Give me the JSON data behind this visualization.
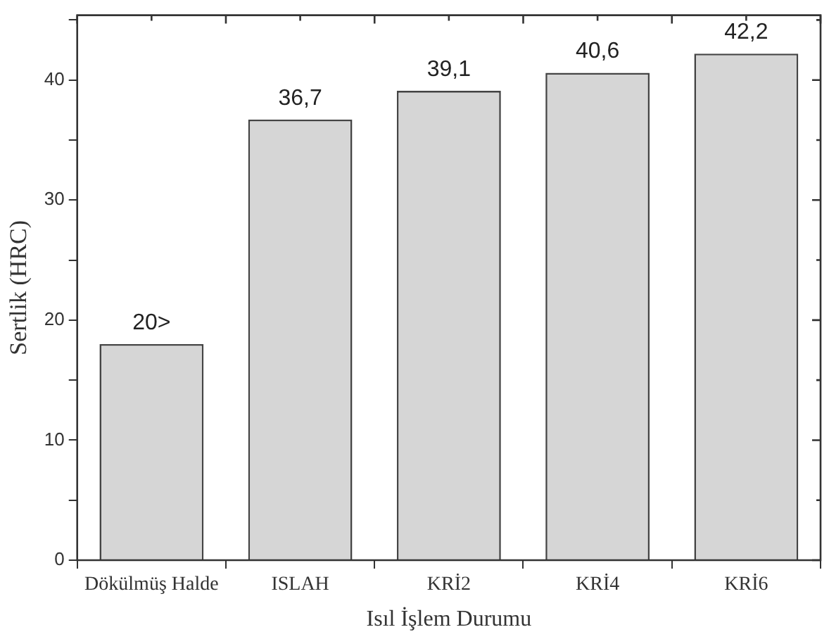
{
  "chart_data": {
    "type": "bar",
    "xlabel": "Isıl İşlem Durumu",
    "ylabel": "Sertlik (HRC)",
    "categories": [
      "Dökülmüş Halde",
      "ISLAH",
      "KRİ2",
      "KRİ4",
      "KRİ6"
    ],
    "values": [
      18,
      36.7,
      39.1,
      40.6,
      42.2
    ],
    "value_labels": [
      "20>",
      "36,7",
      "39,1",
      "40,6",
      "42,2"
    ],
    "color": "#d6d6d6",
    "ylim": [
      0,
      45.4
    ],
    "yticks": [
      0,
      {
        "value": 5,
        "label": null
      },
      10,
      {
        "value": 15,
        "label": null
      },
      20,
      {
        "value": 25,
        "label": null
      },
      30,
      {
        "value": 35,
        "label": null
      },
      40,
      {
        "value": 45,
        "label": null
      }
    ],
    "grid": false,
    "legend": false
  }
}
